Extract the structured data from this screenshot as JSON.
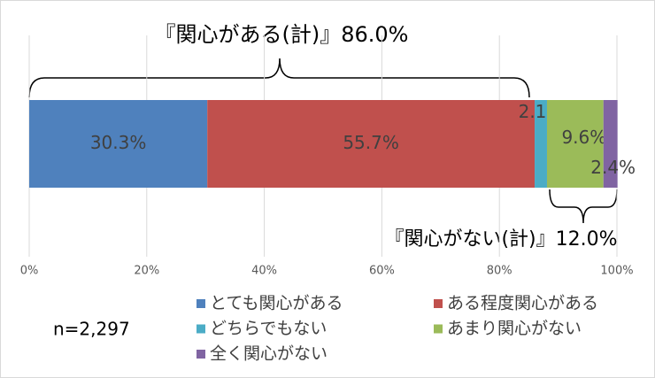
{
  "chart_data": {
    "type": "stacked-bar-horizontal",
    "categories": [
      null
    ],
    "series": [
      {
        "name": "とても関心がある",
        "color": "#4f81bd",
        "values": [
          30.3
        ],
        "value_labels": [
          "30.3%"
        ]
      },
      {
        "name": "ある程度関心がある",
        "color": "#c0504d",
        "values": [
          55.7
        ],
        "value_labels": [
          "55.7%"
        ]
      },
      {
        "name": "どちらでもない",
        "color": "#4bacc6",
        "values": [
          2.1
        ],
        "value_labels": [
          "2.1%"
        ]
      },
      {
        "name": "あまり関心がない",
        "color": "#9bbb59",
        "values": [
          9.6
        ],
        "value_labels": [
          "9.6%"
        ]
      },
      {
        "name": "全く関心がない",
        "color": "#8064a2",
        "values": [
          2.4
        ],
        "value_labels": [
          "2.4%"
        ]
      }
    ],
    "xlim": [
      0,
      100
    ],
    "xticks": [
      {
        "value": 0,
        "label": "0%"
      },
      {
        "value": 20,
        "label": "20%"
      },
      {
        "value": 40,
        "label": "40%"
      },
      {
        "value": 60,
        "label": "60%"
      },
      {
        "value": 80,
        "label": "80%"
      },
      {
        "value": 100,
        "label": "100%"
      }
    ],
    "grid": true,
    "annotations": [
      "『関心がある(計)』86.0%",
      "『関心がない(計)』12.0%",
      "n=2,297"
    ]
  }
}
